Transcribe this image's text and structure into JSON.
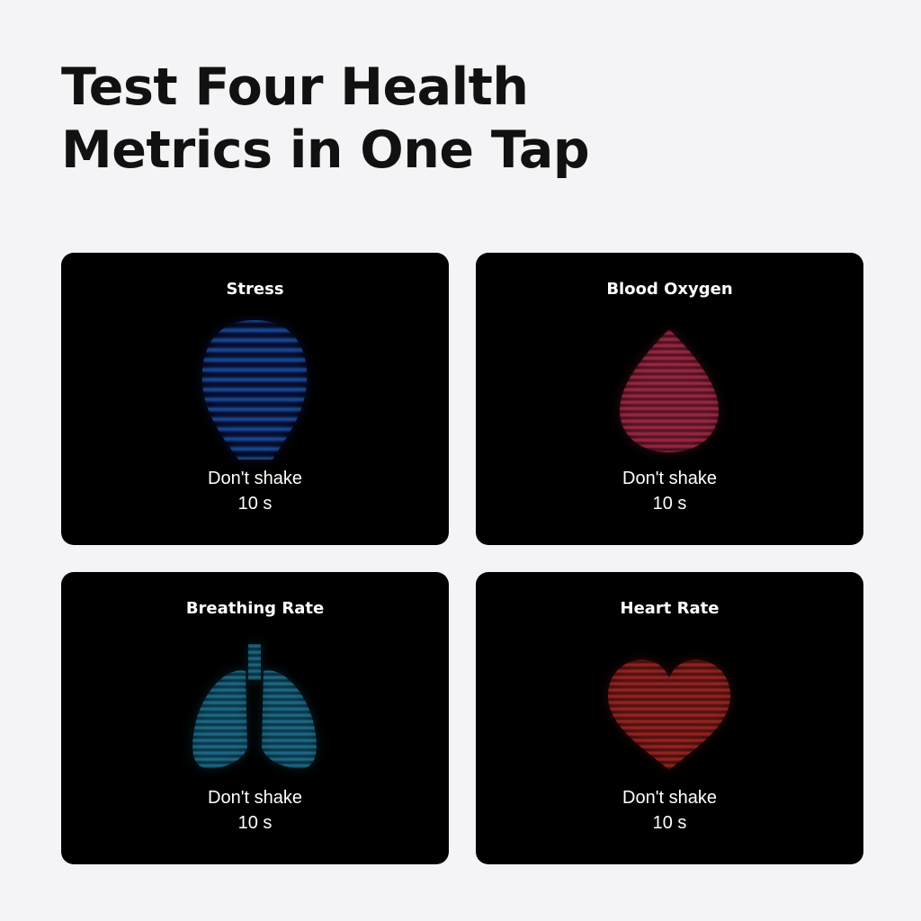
{
  "headline": {
    "line1": "Test Four Health",
    "line2": "Metrics in One Tap"
  },
  "cards": [
    {
      "title": "Stress",
      "instruction": "Don't shake",
      "duration": "10 s",
      "icon": "head-icon",
      "colors": [
        "#3aa0d8",
        "#1a3fe0"
      ]
    },
    {
      "title": "Blood Oxygen",
      "instruction": "Don't shake",
      "duration": "10 s",
      "icon": "blood-drop-icon",
      "colors": [
        "#ff4a78",
        "#e0305a"
      ]
    },
    {
      "title": "Breathing Rate",
      "instruction": "Don't shake",
      "duration": "10 s",
      "icon": "lungs-icon",
      "colors": [
        "#3ab8e0",
        "#1c8fc0"
      ]
    },
    {
      "title": "Heart Rate",
      "instruction": "Don't shake",
      "duration": "10 s",
      "icon": "heart-icon",
      "colors": [
        "#ff4a40",
        "#d02828"
      ]
    }
  ]
}
